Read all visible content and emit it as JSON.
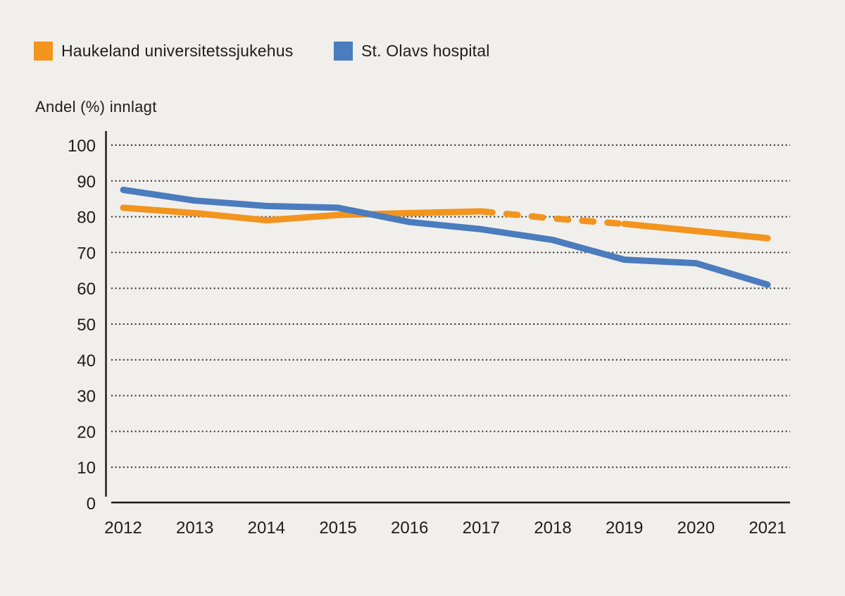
{
  "legend": {
    "items": [
      {
        "label": "Haukeland universitetssjukehus",
        "color": "#f2941d"
      },
      {
        "label": "St. Olavs hospital",
        "color": "#4a7cbe"
      }
    ]
  },
  "chart_data": {
    "type": "line",
    "title": "",
    "ylabel": "Andel (%) innlagt",
    "xlabel": "",
    "x": [
      2012,
      2013,
      2014,
      2015,
      2016,
      2017,
      2018,
      2019,
      2020,
      2021
    ],
    "series": [
      {
        "name": "Haukeland universitetssjukehus",
        "color": "#f2941d",
        "values": [
          82.5,
          81,
          79,
          80.5,
          81,
          81.5,
          79.5,
          78,
          76,
          74
        ],
        "dashed_segment": {
          "from_x": 2017,
          "to_x": 2019
        }
      },
      {
        "name": "St. Olavs hospital",
        "color": "#4a7cbe",
        "values": [
          87.5,
          84.5,
          83,
          82.5,
          78.5,
          76.5,
          73.5,
          68,
          67,
          61
        ]
      }
    ],
    "ylim": [
      0,
      100
    ],
    "yticks": [
      0,
      10,
      20,
      30,
      40,
      50,
      60,
      70,
      80,
      90,
      100
    ],
    "grid": "horizontal-dotted",
    "legend_position": "top-left",
    "colors": {
      "background": "#f1efec",
      "text": "#1d1d1b",
      "gridline": "#2e2d2b",
      "axis": "#1d1d1b"
    }
  }
}
